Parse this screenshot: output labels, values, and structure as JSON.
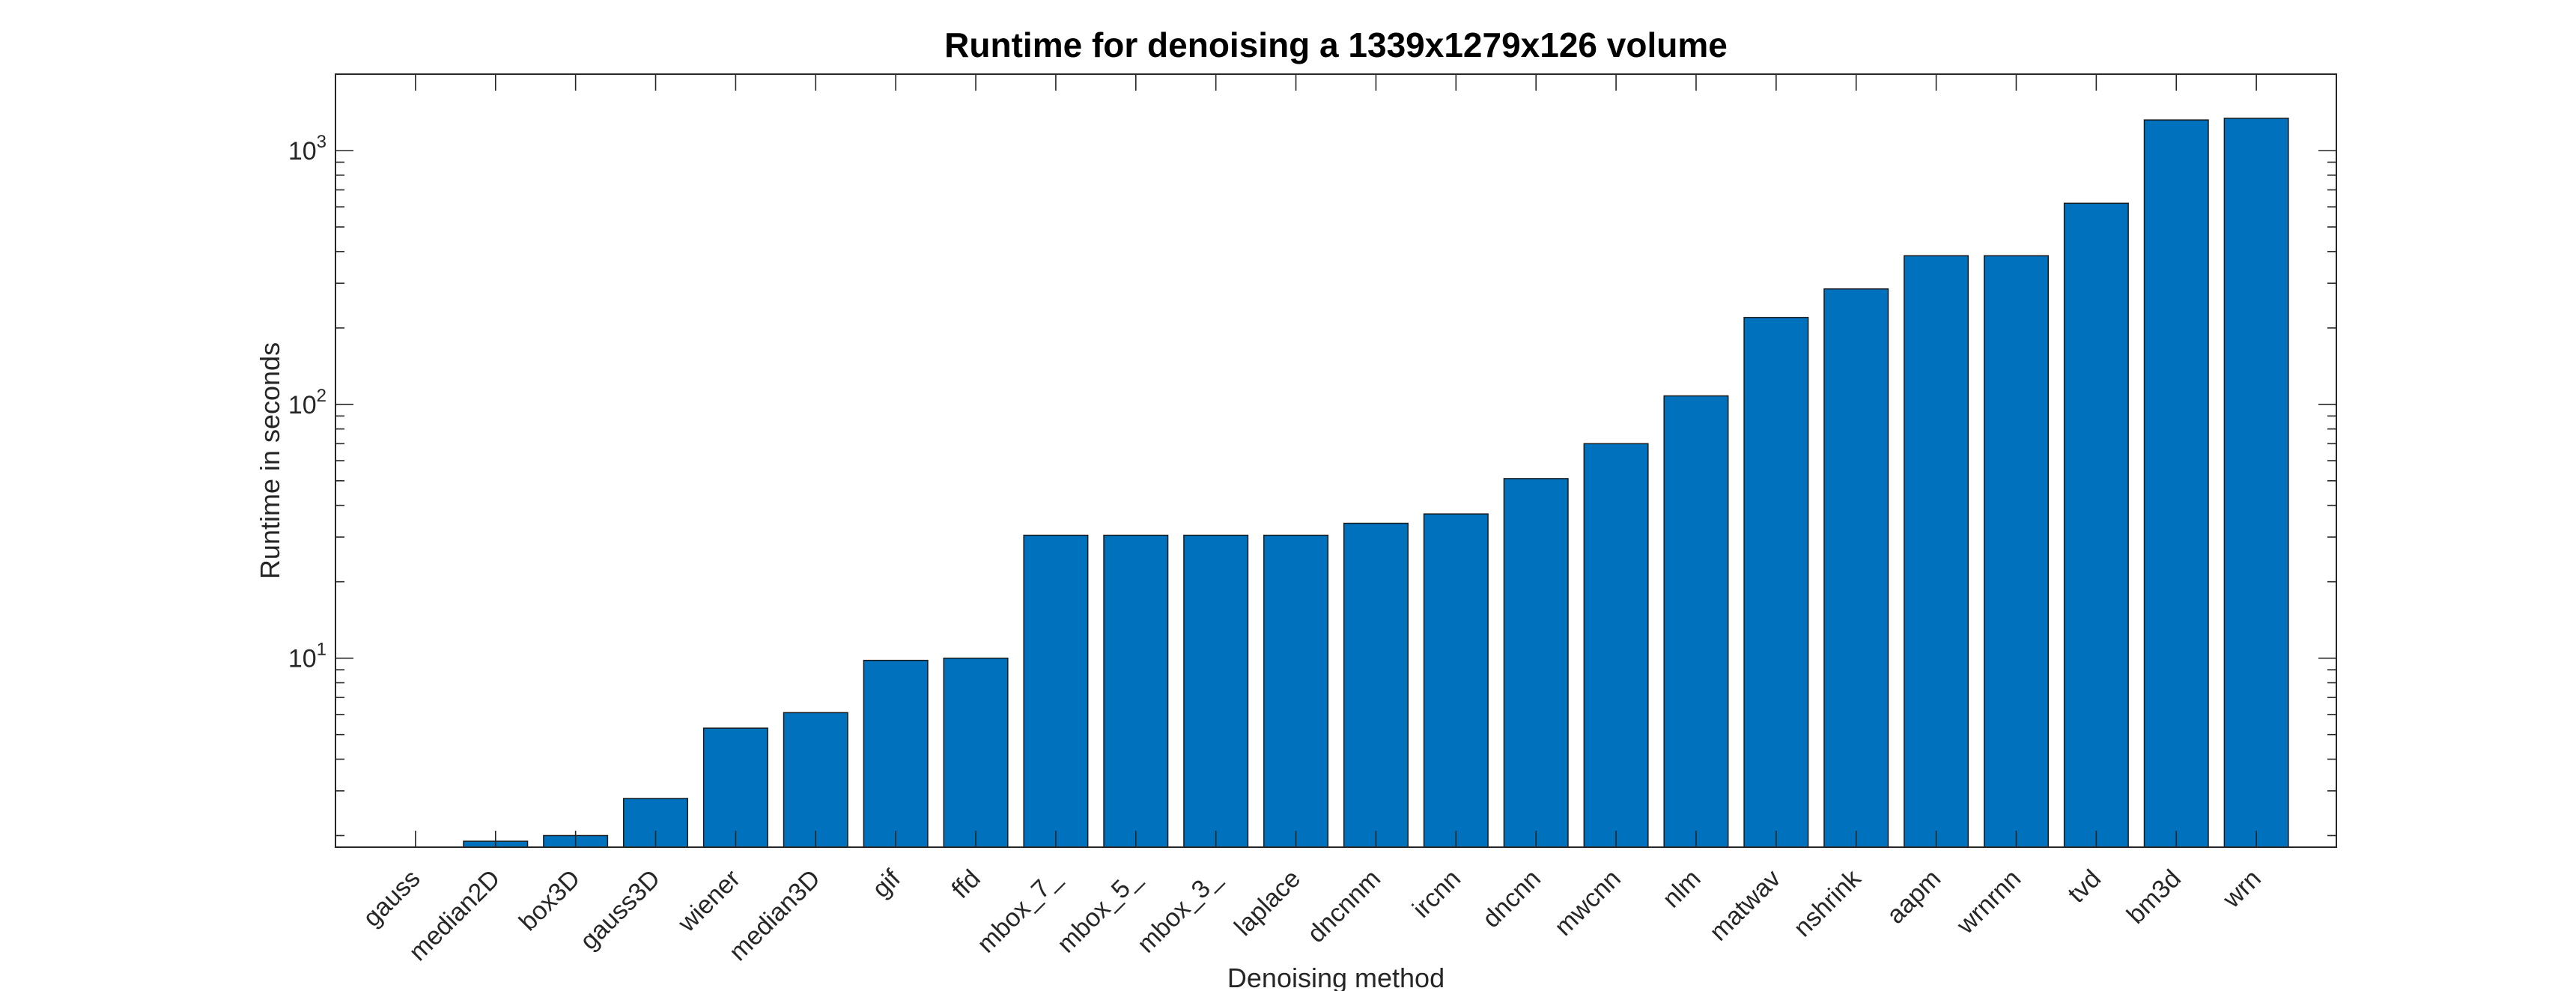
{
  "chart_data": {
    "type": "bar",
    "title": "Runtime for denoising a 1339x1279x126 volume",
    "xlabel": "Denoising method",
    "ylabel": "Runtime in seconds",
    "yscale": "log",
    "ylim": [
      1.8,
      2000
    ],
    "y_ticks": [
      {
        "value": 10,
        "base": "10",
        "exp": "1"
      },
      {
        "value": 100,
        "base": "10",
        "exp": "2"
      },
      {
        "value": 1000,
        "base": "10",
        "exp": "3"
      }
    ],
    "grid": false,
    "bar_color": "#0072BD",
    "categories": [
      "gauss",
      "median2D",
      "box3D",
      "gauss3D",
      "wiener",
      "median3D",
      "gif",
      "ffd",
      "mbox_7_",
      "mbox_5_",
      "mbox_3_",
      "laplace",
      "dncnnm",
      "ircnn",
      "dncnn",
      "mwcnn",
      "nlm",
      "matwav",
      "nshrink",
      "aapm",
      "wrnrnn",
      "tvd",
      "bm3d",
      "wrn"
    ],
    "values": [
      1.7,
      1.9,
      2.0,
      2.8,
      5.3,
      6.1,
      9.8,
      10.0,
      30.5,
      30.5,
      30.5,
      30.5,
      34,
      37,
      51,
      70,
      108,
      220,
      285,
      385,
      385,
      620,
      1320,
      1340
    ]
  }
}
